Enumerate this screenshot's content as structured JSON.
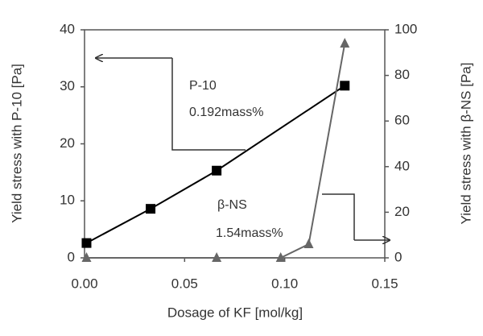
{
  "chart_data": {
    "type": "line",
    "x_label": "Dosage of KF [mol/kg]",
    "y_label": "Yield stress with P-10  [Pa]",
    "y2_label": "Yield stress with β-NS  [Pa]",
    "xlim": [
      0,
      0.15
    ],
    "xticks": [
      {
        "value": 0,
        "label": "0.00"
      },
      {
        "value": 0.05,
        "label": "0.05"
      },
      {
        "value": 0.1,
        "label": "0.10"
      },
      {
        "value": 0.15,
        "label": "0.15"
      }
    ],
    "ylim": [
      0,
      40
    ],
    "yticks": [
      0,
      10,
      20,
      30,
      40
    ],
    "y2lim": [
      0,
      100
    ],
    "y2ticks": [
      0,
      20,
      40,
      60,
      80,
      100
    ],
    "grid": false,
    "series": [
      {
        "color": "#000000",
        "marker": "square",
        "x": [
          0.001,
          0.033,
          0.066,
          0.13
        ],
        "values": [
          2.6,
          8.6,
          15.3,
          30.2
        ]
      },
      {
        "color": "#666666",
        "marker": "triangle",
        "axis": "y2",
        "x": [
          0.001,
          0.066,
          0.098,
          0.112,
          0.13
        ],
        "values": [
          0,
          0,
          0,
          6,
          94
        ]
      }
    ],
    "annotations": [
      "P-10",
      "0.192mass%",
      "β-NS",
      "1.54mass%"
    ]
  }
}
